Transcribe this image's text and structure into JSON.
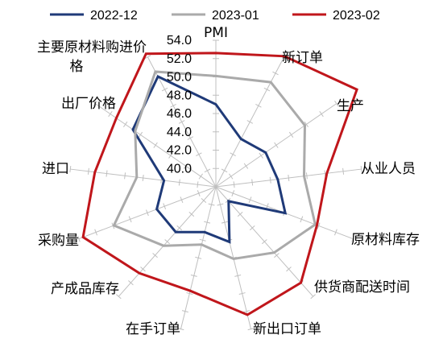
{
  "chart_data": {
    "type": "radar",
    "axes": [
      "PMI",
      "新订单",
      "生产",
      "从业人员",
      "原材料库存",
      "供货商配送时间",
      "新出口订单",
      "在手订单",
      "产成品库存",
      "采购量",
      "进口",
      "出厂价格",
      "主要原材料购进价格"
    ],
    "axis_label_lines": [
      [
        "PMI"
      ],
      [
        "新订单"
      ],
      [
        "生产"
      ],
      [
        "从业人员"
      ],
      [
        "原材料库存"
      ],
      [
        "供货商配送时间"
      ],
      [
        "新出口订单"
      ],
      [
        "在手订单"
      ],
      [
        "产成品库存"
      ],
      [
        "采购量"
      ],
      [
        "进口"
      ],
      [
        "出厂价格"
      ],
      [
        "主要原材料购进价",
        "格"
      ]
    ],
    "range": [
      38,
      54
    ],
    "ticks": [
      40.0,
      42.0,
      44.0,
      46.0,
      48.0,
      50.0,
      52.0,
      54.0
    ],
    "tick_labels": [
      "40.0",
      "42.0",
      "44.0",
      "46.0",
      "48.0",
      "50.0",
      "52.0",
      "54.0"
    ],
    "series": [
      {
        "name": "2022-12",
        "color": "#1f3a78",
        "values": [
          47.0,
          43.9,
          44.6,
          44.8,
          46.1,
          40.1,
          44.2,
          43.1,
          44.6,
          44.9,
          43.7,
          49.0,
          51.6
        ]
      },
      {
        "name": "2023-01",
        "color": "#aaaaaa",
        "values": [
          50.1,
          50.9,
          49.8,
          47.7,
          49.6,
          47.6,
          46.1,
          44.5,
          46.6,
          49.9,
          46.7,
          48.7,
          52.2
        ]
      },
      {
        "name": "2023-02",
        "color": "#c0161b",
        "values": [
          52.6,
          54.1,
          56.7,
          50.2,
          49.8,
          52.0,
          52.4,
          49.7,
          50.6,
          53.5,
          51.3,
          51.2,
          54.4
        ]
      }
    ],
    "legend_position": "top",
    "grid": false
  }
}
